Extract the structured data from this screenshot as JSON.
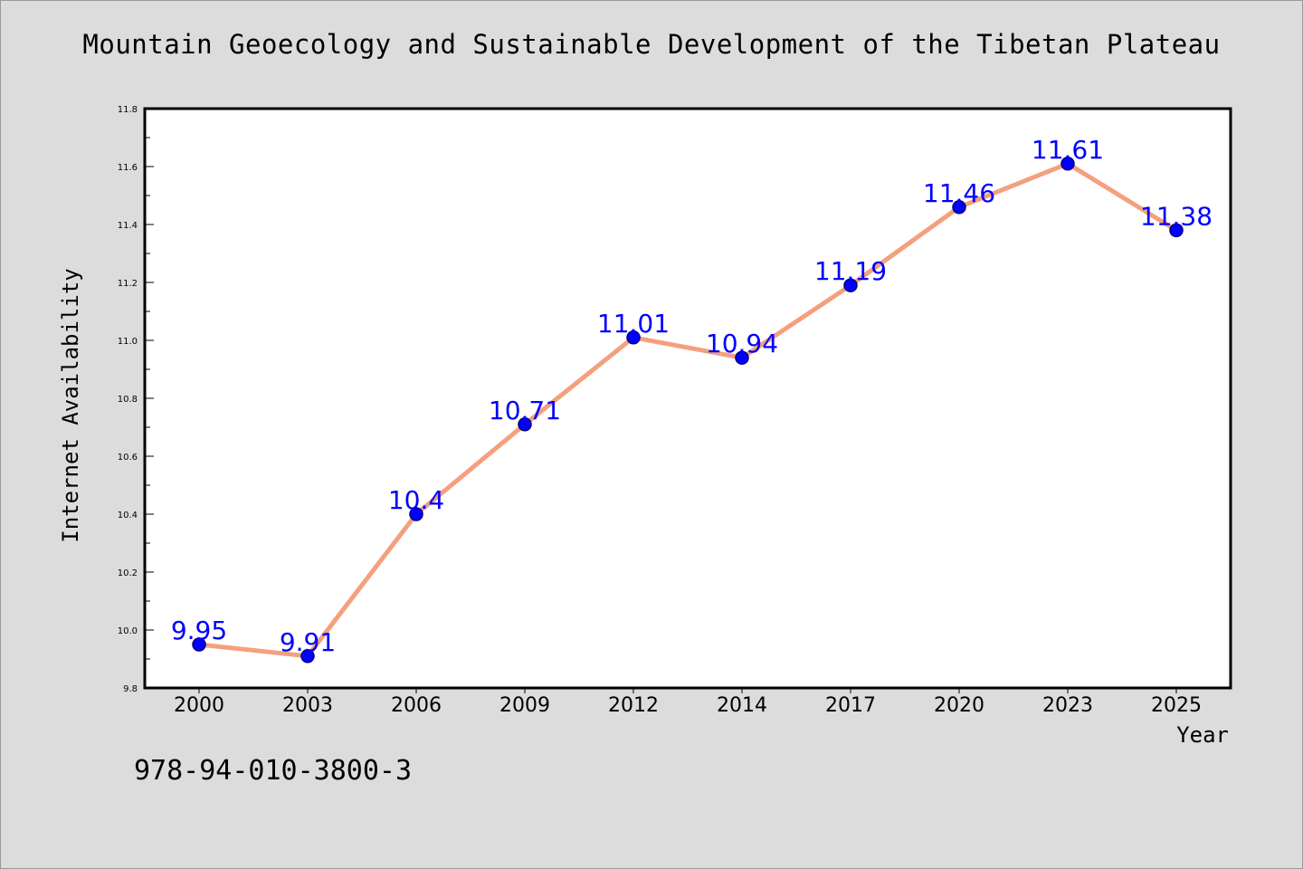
{
  "page": {
    "title": "Mountain Geoecology and Sustainable Development of the Tibetan Plateau",
    "isbn": "978-94-010-3800-3"
  },
  "chart_data": {
    "type": "line",
    "title": "Mountain Geoecology and Sustainable Development of the Tibetan Plateau",
    "xlabel": "Year",
    "ylabel": "Internet Availability",
    "categories": [
      "2000",
      "2003",
      "2006",
      "2009",
      "2012",
      "2014",
      "2017",
      "2020",
      "2023",
      "2025"
    ],
    "values": [
      9.95,
      9.91,
      10.4,
      10.71,
      11.01,
      10.94,
      11.19,
      11.46,
      11.61,
      11.38
    ],
    "data_labels": [
      "9.95",
      "9.91",
      "10.4",
      "10.71",
      "11.01",
      "10.94",
      "11.19",
      "11.46",
      "11.61",
      "11.38"
    ],
    "ylim": [
      9.8,
      11.8
    ],
    "yticks": [
      "9.8",
      "10.0",
      "10.2",
      "10.4",
      "10.6",
      "10.8",
      "11.0",
      "11.2",
      "11.4",
      "11.6",
      "11.8"
    ],
    "grid": false,
    "legend": "none",
    "colors": {
      "line": "#f4a07e",
      "marker": "#0000ff",
      "marker_edge": "#000080",
      "data_label": "#0000ff",
      "plot_bg": "#ffffff",
      "figure_bg": "#dcdcdc"
    }
  }
}
